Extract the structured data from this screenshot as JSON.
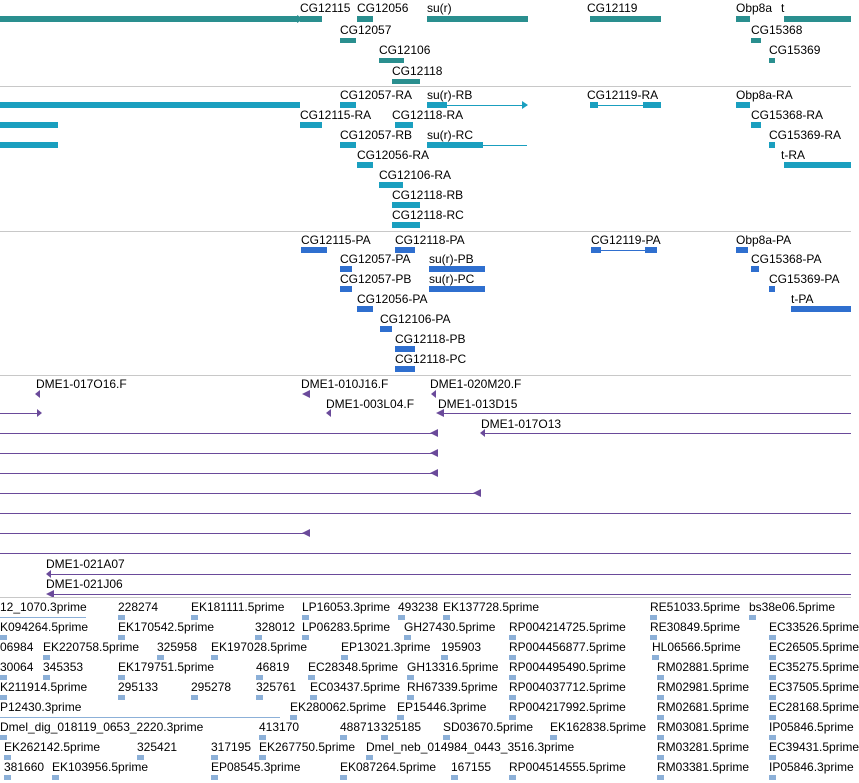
{
  "colors": {
    "gene": "#2a8f8f",
    "mrna": "#1a9fbf",
    "protein": "#2f6fcf",
    "clone": "#6a4a9a",
    "est": "#7aa6d8",
    "separator": "#c8c8c8"
  },
  "tracks": {
    "gene": {
      "labels": [
        "CG12115",
        "CG12056",
        "su(r)",
        "CG12119",
        "Obp8a",
        "t",
        "CG12057",
        "CG15368",
        "CG12106",
        "CG15369",
        "CG12118"
      ]
    },
    "mrna": {
      "labels": [
        "CG12057-RA",
        "su(r)-RB",
        "CG12119-RA",
        "Obp8a-RA",
        "CG12115-RA",
        "CG12118-RA",
        "CG15368-RA",
        "CG12057-RB",
        "su(r)-RC",
        "CG15369-RA",
        "CG12056-RA",
        "t-RA",
        "CG12106-RA",
        "CG12118-RB",
        "CG12118-RC"
      ]
    },
    "protein": {
      "labels": [
        "CG12115-PA",
        "CG12118-PA",
        "CG12119-PA",
        "Obp8a-PA",
        "CG12057-PA",
        "su(r)-PB",
        "CG15368-PA",
        "CG12057-PB",
        "su(r)-PC",
        "CG15369-PA",
        "CG12056-PA",
        "t-PA",
        "CG12106-PA",
        "CG12118-PB",
        "CG12118-PC"
      ]
    },
    "clone": {
      "labels": [
        "DME1-017O16.F",
        "DME1-010J16.F",
        "DME1-020M20.F",
        "DME1-003L04.F",
        "DME1-013D15",
        "DME1-017O13",
        "DME1-021A07",
        "DME1-021J06"
      ]
    },
    "est": {
      "rows": [
        [
          "12_1070.3prime",
          "228274",
          "EK181111.5prime",
          "LP16053.3prime",
          "493238",
          "EK137728.5prime",
          "RE51033.5prime",
          "bs38e06.5prime"
        ],
        [
          "K094264.5prime",
          "EK170542.5prime",
          "328012",
          "LP06283.5prime",
          "GH27430.5prime",
          "RP004214725.5prime",
          "RE30849.5prime",
          "EC33526.5prime"
        ],
        [
          "06984",
          "EK220758.5prime",
          "325958",
          "EK197028.5prime",
          "EP13021.3prime",
          "195903",
          "RP004456877.5prime",
          "HL06566.5prime",
          "EC26505.5prime"
        ],
        [
          "30064",
          "345353",
          "EK179751.5prime",
          "46819",
          "EC28348.5prime",
          "GH13316.5prime",
          "RP004495490.5prime",
          "RM02881.5prime",
          "EC35275.5prime"
        ],
        [
          "K211914.5prime",
          "295133",
          "295278",
          "325761",
          "EC03437.5prime",
          "RH67339.5prime",
          "RP004037712.5prime",
          "RM02981.5prime",
          "EC37505.5prime"
        ],
        [
          "P12430.3prime",
          "EK280062.5prime",
          "EP15446.3prime",
          "RP004217992.5prime",
          "RM02681.5prime",
          "EC28168.5prime"
        ],
        [
          "Dmel_dig_018119_0653_2220.3prime",
          "413170",
          "488713",
          "325185",
          "SD03670.5prime",
          "EK162838.5prime",
          "RM03081.5prime",
          "IP05846.5prime"
        ],
        [
          "EK262142.5prime",
          "325421",
          "317195",
          "EK267750.5prime",
          "Dmel_neb_014984_0443_3516.3prime",
          "RM03281.5prime",
          "EC39431.5prime"
        ],
        [
          "381660",
          "EK103956.5prime",
          "EP08545.3prime",
          "EK087264.5prime",
          "167155",
          "RP004514555.5prime",
          "RM03381.5prime",
          "IP05846.3prime"
        ]
      ]
    }
  }
}
